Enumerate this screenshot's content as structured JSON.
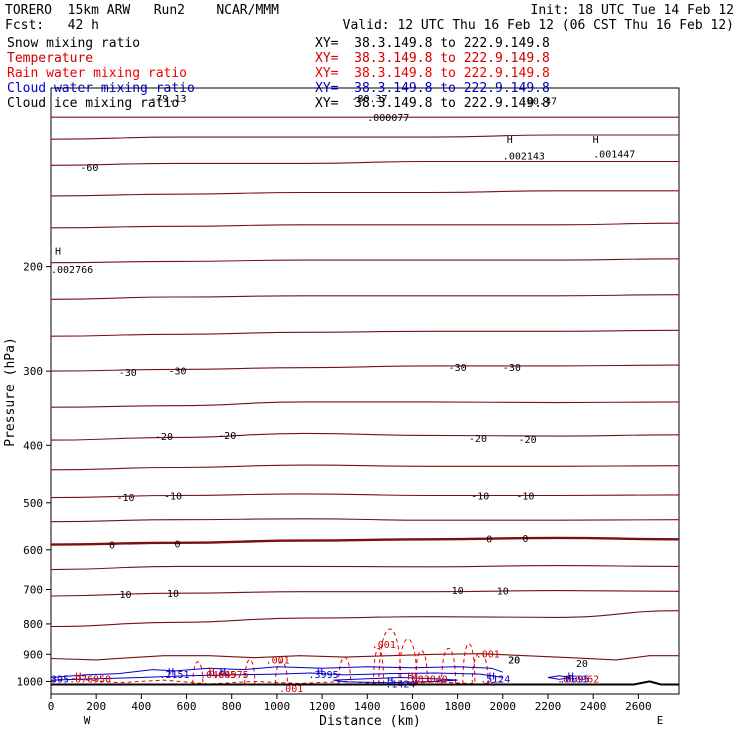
{
  "header": {
    "model_line": "TORERO  15km ARW   Run2    NCAR/MMM",
    "init": "Init: 18 UTC Tue 14 Feb 12",
    "fcst": "Fcst:   42 h",
    "valid": "Valid: 12 UTC Thu 16 Feb 12 (06 CST Thu 16 Feb 12)"
  },
  "fields": [
    {
      "name": "Snow mixing ratio",
      "xy": "XY=  38.3.149.8 to 222.9.149.8",
      "color": "#000000"
    },
    {
      "name": "Temperature",
      "xy": "XY=  38.3.149.8 to 222.9.149.8",
      "color": "#cc0000"
    },
    {
      "name": "Rain water mixing ratio",
      "xy": "XY=  38.3.149.8 to 222.9.149.8",
      "color": "#ee0000"
    },
    {
      "name": "Cloud water mixing ratio",
      "xy": "XY=  38.3.149.8 to 222.9.149.8",
      "color": "#0000cc"
    },
    {
      "name": "Cloud ice mixing ratio",
      "xy": "XY=  38.3.149.8 to 222.9.149.8",
      "color": "#000000"
    }
  ],
  "chart_data": {
    "type": "cross-section",
    "xlabel": "Distance (km)",
    "ylabel": "Pressure (hPa)",
    "xlim": [
      0,
      2780
    ],
    "ylim": [
      1050,
      100
    ],
    "y_log": true,
    "x_ticks": [
      "0",
      "200",
      "400",
      "600",
      "800",
      "1000",
      "1200",
      "1400",
      "1600",
      "1800",
      "2000",
      "2200",
      "2400",
      "2600"
    ],
    "y_ticks": [
      "200",
      "300",
      "400",
      "500",
      "600",
      "700",
      "800",
      "900",
      "1000"
    ],
    "x_end_labels": {
      "left": "W",
      "right": "E"
    },
    "temperature_contours": [
      {
        "t": -70,
        "p": [
          112,
          112,
          112,
          112,
          112,
          112
        ]
      },
      {
        "t": -65,
        "p": [
          122,
          121,
          121,
          121,
          120,
          120
        ]
      },
      {
        "t": -60,
        "p": [
          135,
          134,
          134,
          133,
          133,
          133
        ]
      },
      {
        "t": -55,
        "p": [
          152,
          151,
          150,
          150,
          149,
          149
        ]
      },
      {
        "t": -50,
        "p": [
          172,
          171,
          170,
          170,
          170,
          169
        ]
      },
      {
        "t": -45,
        "p": [
          197,
          196,
          195,
          195,
          195,
          194
        ]
      },
      {
        "t": -40,
        "p": [
          227,
          225,
          224,
          224,
          224,
          223
        ]
      },
      {
        "t": -35,
        "p": [
          262,
          260,
          258,
          257,
          257,
          256
        ]
      },
      {
        "t": -30,
        "p": [
          300,
          298,
          296,
          294,
          294,
          293
        ]
      },
      {
        "t": -25,
        "p": [
          345,
          343,
          338,
          338,
          339,
          338
        ]
      },
      {
        "t": -20,
        "p": [
          392,
          388,
          382,
          385,
          386,
          384
        ]
      },
      {
        "t": -15,
        "p": [
          440,
          436,
          432,
          434,
          434,
          433
        ]
      },
      {
        "t": -10,
        "p": [
          490,
          486,
          483,
          486,
          486,
          485
        ]
      },
      {
        "t": -5,
        "p": [
          538,
          534,
          532,
          535,
          535,
          534
        ]
      },
      {
        "t": 0,
        "p": [
          588,
          584,
          579,
          576,
          573,
          576
        ]
      },
      {
        "t": 5,
        "p": [
          648,
          640,
          640,
          641,
          638,
          640
        ]
      },
      {
        "t": 10,
        "p": [
          718,
          710,
          706,
          706,
          703,
          705
        ]
      },
      {
        "t": 15,
        "p": [
          808,
          795,
          782,
          778,
          780,
          760
        ]
      }
    ],
    "temperature_labels": [
      "-60",
      "-30",
      "-30",
      "-30",
      "-30",
      "-20",
      "-20",
      "-20",
      "-20",
      "-10",
      "-10",
      "-10",
      "-10",
      "0",
      "0",
      "0",
      "0",
      "10",
      "10",
      "10",
      "10",
      "20",
      "20",
      "20"
    ],
    "value_labels": [
      {
        "text": "-79.13",
        "color": "#000000",
        "x": 440,
        "p": 104
      },
      {
        "text": "-80.37",
        "color": "#000000",
        "x": 1330,
        "p": 104
      },
      {
        "text": "-80.47",
        "color": "#000000",
        "x": 2080,
        "p": 105
      },
      {
        "text": ".000077",
        "color": "#000000",
        "x": 1400,
        "p": 112
      },
      {
        "text": ".002143",
        "color": "#000000",
        "x": 2000,
        "p": 130
      },
      {
        "text": ".001447",
        "color": "#000000",
        "x": 2400,
        "p": 129
      },
      {
        "text": ".002766",
        "color": "#000000",
        "x": 0,
        "p": 202
      },
      {
        "text": ".001",
        "color": "#cc0000",
        "x": 1420,
        "p": 865
      },
      {
        "text": ".001",
        "color": "#cc0000",
        "x": 950,
        "p": 918
      },
      {
        "text": ".001",
        "color": "#cc0000",
        "x": 1880,
        "p": 898
      },
      {
        "text": ".001",
        "color": "#cc0000",
        "x": 1010,
        "p": 1025
      },
      {
        "text": ".2151",
        "color": "#0000cc",
        "x": 480,
        "p": 972
      },
      {
        "text": ".04605",
        "color": "#cc0000",
        "x": 660,
        "p": 972
      },
      {
        "text": ".04975",
        "color": "#cc0000",
        "x": 715,
        "p": 972
      },
      {
        "text": ".3995",
        "color": "#0000cc",
        "x": 1140,
        "p": 972
      },
      {
        "text": ".083040",
        "color": "#cc0000",
        "x": 1570,
        "p": 988
      },
      {
        "text": ".5124",
        "color": "#0000cc",
        "x": 1900,
        "p": 988
      },
      {
        "text": ".060962",
        "color": "#cc0000",
        "x": 2240,
        "p": 988
      },
      {
        "text": ".0695",
        "color": "#0000cc",
        "x": 2250,
        "p": 988
      },
      {
        "text": ".1424",
        "color": "#0000cc",
        "x": 1480,
        "p": 1008
      },
      {
        "text": "395",
        "color": "#0000cc",
        "x": 0,
        "p": 988
      },
      {
        "text": ".076950",
        "color": "#cc0000",
        "x": 80,
        "p": 988
      }
    ],
    "markers": [
      {
        "text": "H",
        "color": "#000000",
        "x": 2000,
        "p": 122
      },
      {
        "text": "H",
        "color": "#000000",
        "x": 2380,
        "p": 122
      },
      {
        "text": "H",
        "color": "#000000",
        "x": 0,
        "p": 188
      },
      {
        "text": "H",
        "color": "#cc0000",
        "x": 90,
        "p": 978
      },
      {
        "text": "H",
        "color": "#0000cc",
        "x": 500,
        "p": 960
      },
      {
        "text": "H",
        "color": "#cc0000",
        "x": 680,
        "p": 960
      },
      {
        "text": "H",
        "color": "#0000cc",
        "x": 730,
        "p": 960
      },
      {
        "text": "H",
        "color": "#0000cc",
        "x": 1160,
        "p": 960
      },
      {
        "text": "H",
        "color": "#cc0000",
        "x": 1560,
        "p": 978
      },
      {
        "text": "H",
        "color": "#0000cc",
        "x": 1920,
        "p": 978
      },
      {
        "text": "H",
        "color": "#0000cc",
        "x": 2270,
        "p": 978
      },
      {
        "text": "H",
        "color": "#0000cc",
        "x": 1470,
        "p": 995
      }
    ]
  }
}
